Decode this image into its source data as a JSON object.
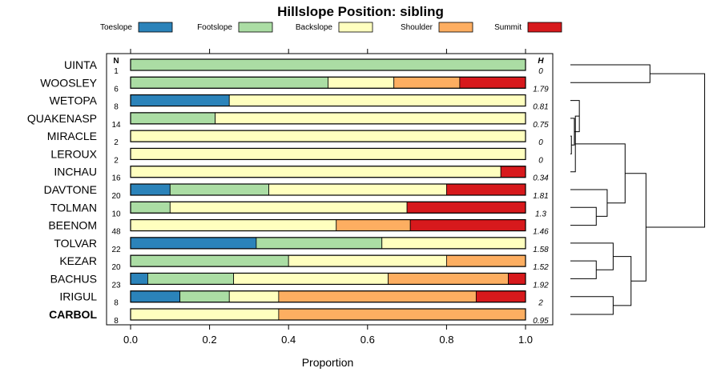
{
  "chart_data": {
    "type": "bar",
    "orientation": "horizontal",
    "stacked": true,
    "title": "Hillslope Position: sibling",
    "xlabel": "Proportion",
    "xlim": [
      0,
      1
    ],
    "xticks": [
      "0.0",
      "0.2",
      "0.4",
      "0.6",
      "0.8",
      "1.0"
    ],
    "legend_position": "top",
    "n_header": "N",
    "h_header": "H",
    "series": [
      {
        "name": "Toeslope",
        "color": "#2b83ba"
      },
      {
        "name": "Footslope",
        "color": "#abdda4"
      },
      {
        "name": "Backslope",
        "color": "#ffffbf"
      },
      {
        "name": "Shoulder",
        "color": "#fdae61"
      },
      {
        "name": "Summit",
        "color": "#d7191c"
      }
    ],
    "rows": [
      {
        "label": "UINTA",
        "n": "1",
        "h": "0",
        "values": [
          0,
          1,
          0,
          0,
          0
        ]
      },
      {
        "label": "WOOSLEY",
        "n": "6",
        "h": "1.79",
        "values": [
          0,
          0.5,
          0.1667,
          0.1667,
          0.1667
        ]
      },
      {
        "label": "WETOPA",
        "n": "8",
        "h": "0.81",
        "values": [
          0.25,
          0,
          0.75,
          0,
          0
        ]
      },
      {
        "label": "QUAKENASP",
        "n": "14",
        "h": "0.75",
        "values": [
          0,
          0.2143,
          0.7857,
          0,
          0
        ]
      },
      {
        "label": "MIRACLE",
        "n": "2",
        "h": "0",
        "values": [
          0,
          0,
          1,
          0,
          0
        ]
      },
      {
        "label": "LEROUX",
        "n": "2",
        "h": "0",
        "values": [
          0,
          0,
          1,
          0,
          0
        ]
      },
      {
        "label": "INCHAU",
        "n": "16",
        "h": "0.34",
        "values": [
          0,
          0,
          0.9375,
          0,
          0.0625
        ]
      },
      {
        "label": "DAVTONE",
        "n": "20",
        "h": "1.81",
        "values": [
          0.1,
          0.25,
          0.45,
          0,
          0.2
        ]
      },
      {
        "label": "TOLMAN",
        "n": "10",
        "h": "1.3",
        "values": [
          0,
          0.1,
          0.6,
          0,
          0.3
        ]
      },
      {
        "label": "BEENOM",
        "n": "48",
        "h": "1.46",
        "values": [
          0,
          0,
          0.5208,
          0.1875,
          0.2917
        ]
      },
      {
        "label": "TOLVAR",
        "n": "22",
        "h": "1.58",
        "values": [
          0.3182,
          0.3182,
          0.3636,
          0,
          0
        ]
      },
      {
        "label": "KEZAR",
        "n": "20",
        "h": "1.52",
        "values": [
          0,
          0.4,
          0.4,
          0.2,
          0
        ]
      },
      {
        "label": "BACHUS",
        "n": "23",
        "h": "1.92",
        "values": [
          0.0435,
          0.2174,
          0.3913,
          0.3043,
          0.0435
        ]
      },
      {
        "label": "IRIGUL",
        "n": "8",
        "h": "2",
        "values": [
          0.125,
          0.125,
          0.125,
          0.5,
          0.125
        ]
      },
      {
        "label": "CARBOL",
        "n": "8",
        "h": "0.95",
        "values": [
          0,
          0,
          0.375,
          0.625,
          0
        ],
        "bold": true
      }
    ],
    "dendrogram": {
      "merges": [
        [
          -5,
          -6,
          0.1
        ],
        [
          -4,
          1,
          0.4
        ],
        [
          -3,
          2,
          0.9
        ],
        [
          -7,
          3,
          0.5
        ],
        [
          -9,
          -10,
          2.6
        ],
        [
          -8,
          5,
          3.7
        ],
        [
          4,
          6,
          5.5
        ],
        [
          -12,
          -13,
          2.6
        ],
        [
          -11,
          8,
          4.3
        ],
        [
          -14,
          -15,
          4.3
        ],
        [
          9,
          10,
          6.1
        ],
        [
          -1,
          -2,
          8.0
        ],
        [
          7,
          11,
          7.6
        ],
        [
          12,
          13,
          13.5
        ]
      ],
      "max_height": 14.5
    }
  }
}
